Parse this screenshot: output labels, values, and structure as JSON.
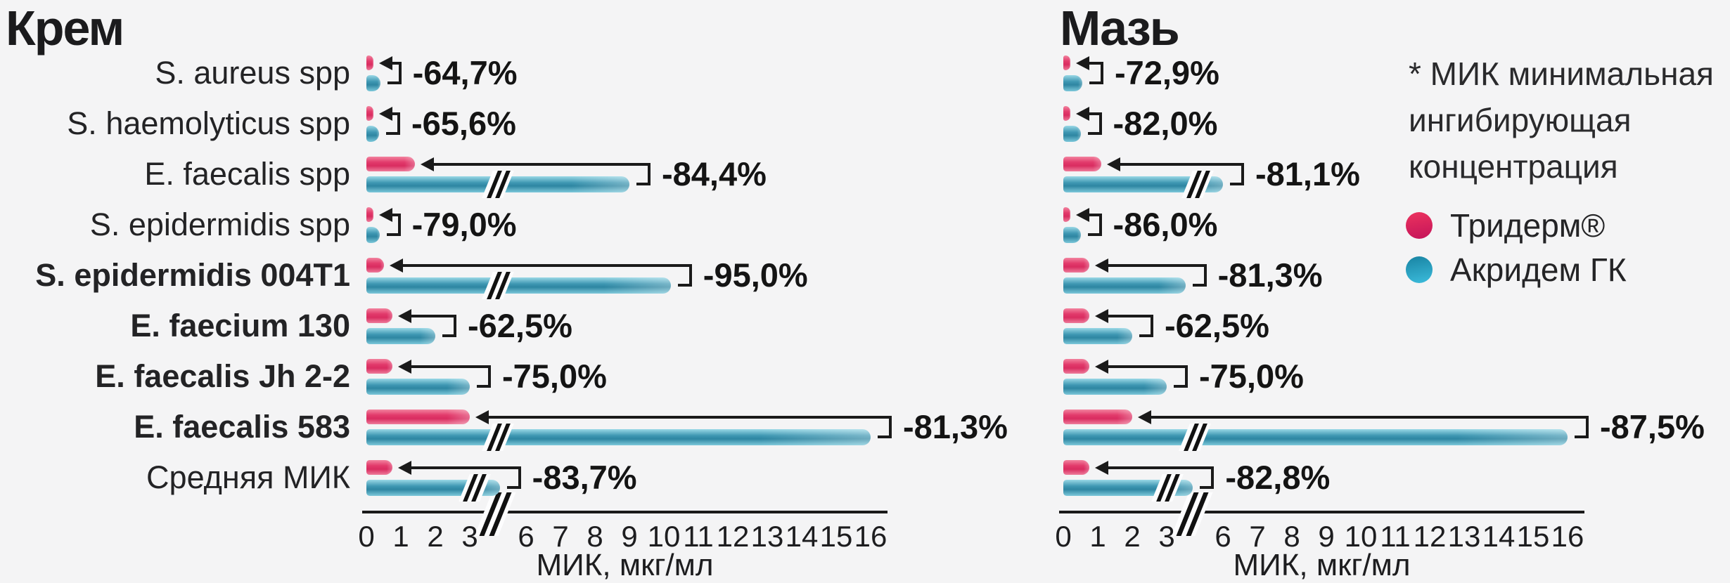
{
  "page": {
    "background": "#f4f4f5"
  },
  "charts": [
    {
      "title": "Крем",
      "show_row_labels": true,
      "rows": [
        {
          "label": "S. aureus spp",
          "bold": false,
          "trid": 0.14,
          "akri": 0.4,
          "pct": "-64,7%"
        },
        {
          "label": "S. haemolyticus spp",
          "bold": false,
          "trid": 0.12,
          "akri": 0.35,
          "pct": "-65,6%"
        },
        {
          "label": "E. faecalis spp",
          "bold": false,
          "trid": 1.4,
          "akri": 9.0,
          "pct": "-84,4%"
        },
        {
          "label": "S. epidermidis spp",
          "bold": false,
          "trid": 0.08,
          "akri": 0.38,
          "pct": "-79,0%"
        },
        {
          "label": "S. epidermidis 004T1",
          "bold": true,
          "trid": 0.5,
          "akri": 10.2,
          "pct": "-95,0%"
        },
        {
          "label": "E. faecium 130",
          "bold": true,
          "trid": 0.75,
          "akri": 2.0,
          "pct": "-62,5%"
        },
        {
          "label": "E. faecalis Jh 2-2",
          "bold": true,
          "trid": 0.75,
          "akri": 3.0,
          "pct": "-75,0%"
        },
        {
          "label": "E. faecalis 583",
          "bold": true,
          "trid": 3.0,
          "akri": 16.0,
          "pct": "-81,3%"
        },
        {
          "label": "Средняя МИК",
          "bold": false,
          "trid": 0.75,
          "akri": 4.6,
          "pct": "-83,7%"
        }
      ]
    },
    {
      "title": "Мазь",
      "show_row_labels": false,
      "rows": [
        {
          "label": "S. aureus spp",
          "bold": false,
          "trid": 0.15,
          "akri": 0.55,
          "pct": "-72,9%"
        },
        {
          "label": "S. haemolyticus spp",
          "bold": false,
          "trid": 0.09,
          "akri": 0.5,
          "pct": "-82,0%"
        },
        {
          "label": "E. faecalis spp",
          "bold": false,
          "trid": 1.1,
          "akri": 6.0,
          "pct": "-81,1%"
        },
        {
          "label": "S. epidermidis spp",
          "bold": false,
          "trid": 0.07,
          "akri": 0.5,
          "pct": "-86,0%"
        },
        {
          "label": "S. epidermidis 004T1",
          "bold": true,
          "trid": 0.75,
          "akri": 4.0,
          "pct": "-81,3%"
        },
        {
          "label": "E. faecium 130",
          "bold": true,
          "trid": 0.75,
          "akri": 2.0,
          "pct": "-62,5%"
        },
        {
          "label": "E. faecalis Jh 2-2",
          "bold": true,
          "trid": 0.75,
          "akri": 3.0,
          "pct": "-75,0%"
        },
        {
          "label": "E. faecalis 583",
          "bold": true,
          "trid": 2.0,
          "akri": 16.0,
          "pct": "-87,5%"
        },
        {
          "label": "Средняя МИК",
          "bold": false,
          "trid": 0.75,
          "akri": 4.4,
          "pct": "-82,8%"
        }
      ]
    }
  ],
  "axis": {
    "ticks": [
      "0",
      "1",
      "2",
      "3",
      "6",
      "7",
      "8",
      "9",
      "10",
      "11",
      "12",
      "13",
      "14",
      "15",
      "16"
    ],
    "tick_values": [
      0,
      1,
      2,
      3,
      6,
      7,
      8,
      9,
      10,
      11,
      12,
      13,
      14,
      15,
      16
    ],
    "label": "МИК, мкг/мл",
    "break_between": [
      "3",
      "6"
    ]
  },
  "legend": {
    "items": [
      {
        "label": "Тридерм®",
        "color": "#d91d55"
      },
      {
        "label": "Акридем ГК",
        "color": "#2795b4"
      }
    ]
  },
  "footnote": {
    "line1": "* МИК минимальная",
    "line2": "ингибирующая",
    "line3": "концентрация"
  },
  "colors": {
    "background": "#f4f4f5",
    "text": "#1b1b1d",
    "triderm_bar_core": "#e1356a",
    "triderm_bar_light": "#f2849f",
    "akridem_bar_core": "#2e86a2",
    "akridem_bar_light": "#93d5e4",
    "arrow": "#1a1a1a"
  },
  "chart_data": [
    {
      "type": "bar",
      "orientation": "horizontal",
      "title": "Крем",
      "categories": [
        "S. aureus spp",
        "S. haemolyticus spp",
        "E. faecalis spp",
        "S. epidermidis spp",
        "S. epidermidis 004T1",
        "E. faecium 130",
        "E. faecalis Jh 2-2",
        "E. faecalis 583",
        "Средняя МИК"
      ],
      "series": [
        {
          "name": "Тридерм®",
          "values": [
            0.14,
            0.12,
            1.4,
            0.08,
            0.5,
            0.75,
            0.75,
            3.0,
            0.75
          ]
        },
        {
          "name": "Акридем ГК",
          "values": [
            0.4,
            0.35,
            9.0,
            0.38,
            10.2,
            2.0,
            3.0,
            16.0,
            4.6
          ]
        }
      ],
      "values_estimated_from_bar_lengths": true,
      "percent_labels": [
        "-64,7%",
        "-65,6%",
        "-84,4%",
        "-79,0%",
        "-95,0%",
        "-62,5%",
        "-75,0%",
        "-81,3%",
        "-83,7%"
      ],
      "xlabel": "МИК, мкг/мл",
      "xticks": [
        0,
        1,
        2,
        3,
        6,
        7,
        8,
        9,
        10,
        11,
        12,
        13,
        14,
        15,
        16
      ],
      "axis_break": [
        3,
        6
      ],
      "xlim": [
        0,
        16
      ],
      "grid": false,
      "legend_position": "right"
    },
    {
      "type": "bar",
      "orientation": "horizontal",
      "title": "Мазь",
      "categories": [
        "S. aureus spp",
        "S. haemolyticus spp",
        "E. faecalis spp",
        "S. epidermidis spp",
        "S. epidermidis 004T1",
        "E. faecium 130",
        "E. faecalis Jh 2-2",
        "E. faecalis 583",
        "Средняя МИК"
      ],
      "series": [
        {
          "name": "Тридерм®",
          "values": [
            0.15,
            0.09,
            1.1,
            0.07,
            0.75,
            0.75,
            0.75,
            2.0,
            0.75
          ]
        },
        {
          "name": "Акридем ГК",
          "values": [
            0.55,
            0.5,
            6.0,
            0.5,
            4.0,
            2.0,
            3.0,
            16.0,
            4.4
          ]
        }
      ],
      "values_estimated_from_bar_lengths": true,
      "percent_labels": [
        "-72,9%",
        "-82,0%",
        "-81,1%",
        "-86,0%",
        "-81,3%",
        "-62,5%",
        "-75,0%",
        "-87,5%",
        "-82,8%"
      ],
      "xlabel": "МИК, мкг/мл",
      "xticks": [
        0,
        1,
        2,
        3,
        6,
        7,
        8,
        9,
        10,
        11,
        12,
        13,
        14,
        15,
        16
      ],
      "axis_break": [
        3,
        6
      ],
      "xlim": [
        0,
        16
      ],
      "grid": false,
      "legend_position": "right"
    }
  ]
}
